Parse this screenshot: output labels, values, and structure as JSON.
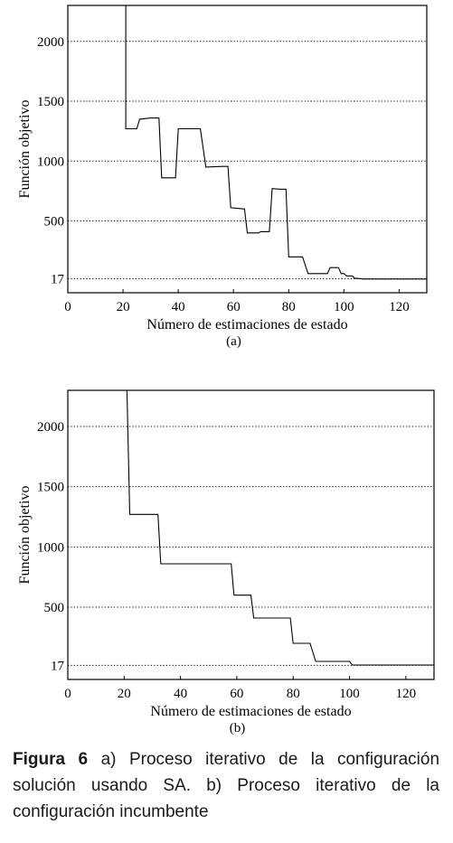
{
  "chart_data": [
    {
      "id": "a",
      "type": "line",
      "panel_label": "(a)",
      "xlabel": "Número de estimaciones de estado",
      "ylabel": "Función objetivo",
      "xlim": [
        0,
        130
      ],
      "ylim": [
        -100,
        2300
      ],
      "xticks": [
        0,
        20,
        40,
        60,
        80,
        100,
        120
      ],
      "yticks": [
        17,
        500,
        1000,
        1500,
        2000
      ],
      "grid": "horizontal dotted",
      "series": [
        {
          "x": [
            21,
            21,
            22,
            25,
            26,
            30,
            33,
            34,
            39,
            40,
            48,
            50,
            56,
            58,
            59,
            64,
            65,
            69,
            70,
            73,
            74,
            77,
            79,
            80,
            85,
            87,
            94,
            95,
            98,
            99,
            100,
            101,
            103,
            104,
            105,
            107,
            130
          ],
          "y": [
            2300,
            1270,
            1270,
            1270,
            1350,
            1360,
            1360,
            860,
            860,
            1270,
            1270,
            950,
            955,
            955,
            610,
            600,
            400,
            400,
            410,
            410,
            770,
            765,
            765,
            200,
            200,
            60,
            60,
            110,
            110,
            60,
            60,
            40,
            40,
            20,
            20,
            15,
            15
          ]
        }
      ]
    },
    {
      "id": "b",
      "type": "line",
      "panel_label": "(b)",
      "xlabel": "Número de estimaciones de estado",
      "ylabel": "Función objetivo",
      "xlim": [
        0,
        130
      ],
      "ylim": [
        -100,
        2300
      ],
      "xticks": [
        0,
        20,
        40,
        60,
        80,
        100,
        120
      ],
      "yticks": [
        17,
        500,
        1000,
        1500,
        2000
      ],
      "grid": "horizontal dotted",
      "series": [
        {
          "x": [
            21,
            22,
            22,
            32,
            33,
            58,
            59,
            65,
            66,
            79,
            80,
            86,
            88,
            100,
            101,
            130
          ],
          "y": [
            2300,
            1270,
            1270,
            1270,
            860,
            860,
            600,
            600,
            410,
            410,
            200,
            200,
            50,
            50,
            20,
            20
          ]
        }
      ]
    }
  ],
  "caption": {
    "label": "Figura 6",
    "text": "a) Proceso iterativo de la configuración solución usando SA. b) Proceso iterativo de la configuración incumbente"
  }
}
